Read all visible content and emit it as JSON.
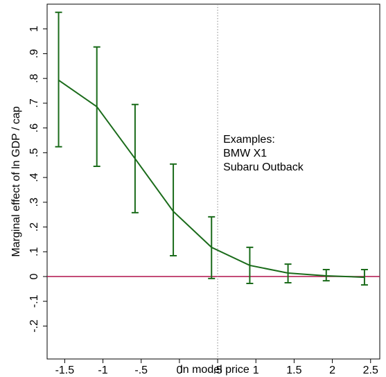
{
  "chart_data": {
    "type": "line",
    "x_label": "ln model price",
    "y_label": "Marginal effect of ln GDP / cap",
    "annotation": [
      "Examples:",
      "BMW X1",
      "Subaru Outback"
    ],
    "x": [
      -1.58,
      -1.08,
      -0.58,
      -0.08,
      0.42,
      0.92,
      1.42,
      1.92,
      2.42
    ],
    "series": [
      {
        "color": "#1a6b1a",
        "values": [
          0.793,
          0.686,
          0.476,
          0.263,
          0.118,
          0.045,
          0.014,
          0.003,
          -0.003
        ],
        "lower": [
          0.524,
          0.445,
          0.258,
          0.084,
          -0.008,
          -0.028,
          -0.025,
          -0.017,
          -0.034
        ],
        "upper": [
          1.067,
          0.927,
          0.695,
          0.454,
          0.241,
          0.118,
          0.05,
          0.028,
          0.028
        ]
      }
    ],
    "hline": 0,
    "hline_color": "#b0104a",
    "vline": 0.5,
    "vline_color": "#888888",
    "xlim": [
      -1.73,
      2.62
    ],
    "ylim": [
      -0.333,
      1.1
    ],
    "xticks": [
      -1.5,
      -1,
      {
        "value": -0.5,
        "label": "-.5"
      },
      0,
      {
        "value": 0.5,
        "label": ".5"
      },
      1,
      1.5,
      2,
      2.5
    ],
    "yticks": [
      {
        "value": -0.2,
        "label": "-.2"
      },
      {
        "value": -0.1,
        "label": "-.1"
      },
      0,
      {
        "value": 0.1,
        "label": ".1"
      },
      {
        "value": 0.2,
        "label": ".2"
      },
      {
        "value": 0.3,
        "label": ".3"
      },
      {
        "value": 0.4,
        "label": ".4"
      },
      {
        "value": 0.5,
        "label": ".5"
      },
      {
        "value": 0.6,
        "label": ".6"
      },
      {
        "value": 0.7,
        "label": ".7"
      },
      {
        "value": 0.8,
        "label": ".8"
      },
      {
        "value": 0.9,
        "label": ".9"
      },
      1
    ]
  }
}
